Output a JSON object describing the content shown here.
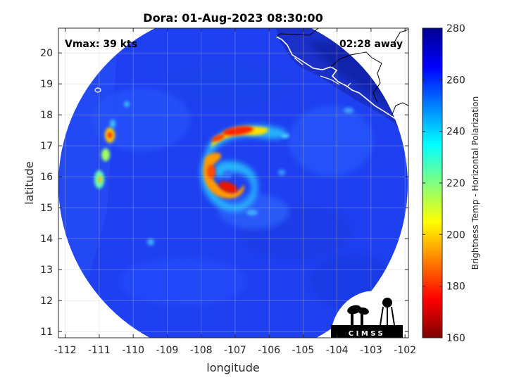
{
  "chart_data": {
    "type": "heatmap",
    "title": "Dora: 01-Aug-2023 08:30:00",
    "xlabel": "longitude",
    "ylabel": "latitude",
    "xlim": [
      -112.2,
      -101.9
    ],
    "ylim": [
      10.8,
      20.8
    ],
    "xticks": [
      -112,
      -111,
      -110,
      -109,
      -108,
      -107,
      -106,
      -105,
      -104,
      -103,
      -102
    ],
    "yticks": [
      11,
      12,
      13,
      14,
      15,
      16,
      17,
      18,
      19,
      20
    ],
    "grid": true,
    "annotations": {
      "vmax": "Vmax: 39 kts",
      "time_away": "02:28 away"
    },
    "colorbar": {
      "label": "Brightness Temp - Horizontal Polarization",
      "range": [
        160,
        280
      ],
      "ticks": [
        160,
        180,
        200,
        220,
        240,
        260,
        280
      ],
      "colormap": "jet"
    },
    "storm_center": {
      "lon": -107.1,
      "lat": 16.1
    },
    "rainbands": [
      {
        "lon": -107.2,
        "lat": 17.5,
        "temp": 185
      },
      {
        "lon": -107.0,
        "lat": 15.8,
        "temp": 180
      },
      {
        "lon": -107.7,
        "lat": 16.2,
        "temp": 200
      },
      {
        "lon": -110.8,
        "lat": 17.3,
        "temp": 190
      },
      {
        "lon": -110.8,
        "lat": 16.7,
        "temp": 215
      },
      {
        "lon": -111.0,
        "lat": 15.9,
        "temp": 205
      }
    ],
    "background_temp": 265,
    "logo_text": "CIMSS"
  },
  "colors": {
    "background_swath": "#1e40f0",
    "outside": "#ffffff"
  }
}
